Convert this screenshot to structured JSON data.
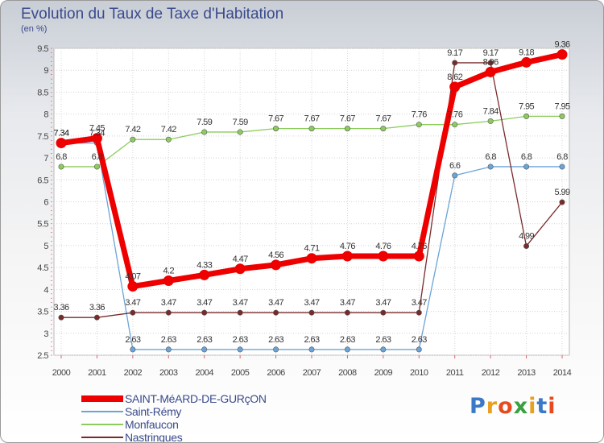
{
  "title": "Evolution du Taux de Taxe d'Habitation",
  "unit": "(en %)",
  "logo": "Proxiti",
  "chart_data": {
    "type": "line",
    "x": [
      2000,
      2001,
      2002,
      2003,
      2004,
      2005,
      2006,
      2007,
      2008,
      2009,
      2010,
      2011,
      2012,
      2013,
      2014
    ],
    "ylim": [
      2.5,
      9.5
    ],
    "yticks": [
      "2.5",
      "3",
      "3.5",
      "4",
      "4.5",
      "5",
      "5.5",
      "6",
      "6.5",
      "7",
      "7.5",
      "8",
      "8.5",
      "9",
      "9.5"
    ],
    "grid": true,
    "legend_position": "bottom-left",
    "series": [
      {
        "name": "SAINT-MéARD-DE-GURçON",
        "color": "#ee0000",
        "values": [
          7.34,
          7.45,
          4.07,
          4.2,
          4.33,
          4.47,
          4.56,
          4.71,
          4.76,
          4.76,
          4.76,
          8.62,
          8.96,
          9.18,
          9.36
        ],
        "labels": [
          "7.34",
          "7.45",
          "4.07",
          "4.2",
          "4.33",
          "4.47",
          "4.56",
          "4.71",
          "4.76",
          "4.76",
          "4.76",
          "8.62",
          "8.96",
          "9.18",
          "9.36"
        ]
      },
      {
        "name": "Saint-Rémy",
        "color": "#6aa4d8",
        "values": [
          7.34,
          7.34,
          2.63,
          2.63,
          2.63,
          2.63,
          2.63,
          2.63,
          2.63,
          2.63,
          2.63,
          6.6,
          6.8,
          6.8,
          6.8
        ],
        "labels": [
          "7.34",
          "7.34",
          "2.63",
          "2.63",
          "2.63",
          "2.63",
          "2.63",
          "2.63",
          "2.63",
          "2.63",
          "2.63",
          "6.6",
          "6.8",
          "6.8",
          "6.8"
        ]
      },
      {
        "name": "Monfaucon",
        "color": "#8ccc5c",
        "values": [
          6.8,
          6.8,
          7.42,
          7.42,
          7.59,
          7.59,
          7.67,
          7.67,
          7.67,
          7.67,
          7.76,
          7.76,
          7.84,
          7.95,
          7.95
        ],
        "labels": [
          "6.8",
          "6.8",
          "7.42",
          "7.42",
          "7.59",
          "7.59",
          "7.67",
          "7.67",
          "7.67",
          "7.67",
          "7.76",
          "7.76",
          "7.84",
          "7.95",
          "7.95"
        ]
      },
      {
        "name": "Nastringues",
        "color": "#7a2a2a",
        "values": [
          3.36,
          3.36,
          3.47,
          3.47,
          3.47,
          3.47,
          3.47,
          3.47,
          3.47,
          3.47,
          3.47,
          9.17,
          9.17,
          4.99,
          5.99
        ],
        "labels": [
          "3.36",
          "3.36",
          "3.47",
          "3.47",
          "3.47",
          "3.47",
          "3.47",
          "3.47",
          "3.47",
          "3.47",
          "3.47",
          "9.17",
          "9.17",
          "4.99",
          "5.99"
        ]
      }
    ]
  }
}
